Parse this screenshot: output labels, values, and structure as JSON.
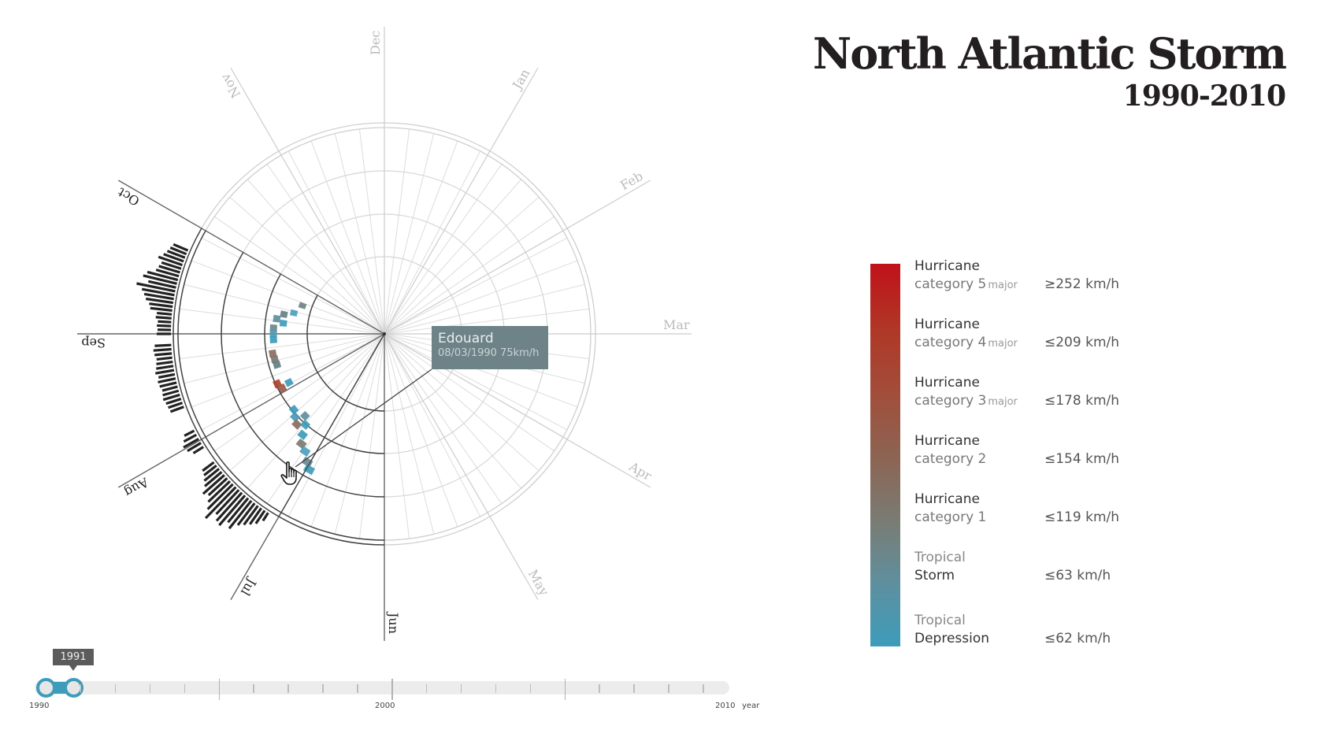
{
  "title": {
    "main": "North Atlantic Storm",
    "years": "1990-2010"
  },
  "tooltip": {
    "name": "Edouard",
    "info": "08/03/1990 75km/h",
    "background": "#6e8387"
  },
  "legend": {
    "gradient": [
      "#c0111a",
      "#b03626",
      "#a24d3a",
      "#8d6352",
      "#7a7b72",
      "#5f8f9e",
      "#3d9cbb"
    ],
    "items": [
      {
        "line1": "Hurricane",
        "line2": "category 5",
        "major": "major",
        "speed": "≥252 km/h"
      },
      {
        "line1": "Hurricane",
        "line2": "category 4",
        "major": "major",
        "speed": "≤209 km/h"
      },
      {
        "line1": "Hurricane",
        "line2": "category 3",
        "major": "major",
        "speed": "≤178 km/h"
      },
      {
        "line1": "Hurricane",
        "line2": "category 2",
        "major": "",
        "speed": "≤154 km/h"
      },
      {
        "line1": "Hurricane",
        "line2": "category 1",
        "major": "",
        "speed": "≤119 km/h"
      },
      {
        "line1": "Tropical",
        "line2": "Storm",
        "major": "",
        "speed": "≤63 km/h"
      },
      {
        "line1": "Tropical",
        "line2": "Depression",
        "major": "",
        "speed": "≤62 km/h"
      }
    ]
  },
  "slider": {
    "selected_label": "1991",
    "start_year": 1990,
    "end_year": 2010,
    "range": [
      1990,
      1991
    ],
    "labels": [
      "1990",
      "2000",
      "2010"
    ],
    "axis_title": "year",
    "accent": "#3d9cbb"
  },
  "cursor": {
    "icon": "hand-pointer-icon"
  },
  "chart_data": {
    "type": "radial-heatmap",
    "title": "North Atlantic Storm 1990-2010",
    "center": [
      488,
      424
    ],
    "months": [
      "Dec",
      "Jan",
      "Feb",
      "Mar",
      "Apr",
      "May",
      "Jun",
      "Jul",
      "Aug",
      "Sep",
      "Oct",
      "Nov"
    ],
    "month_angle_start_deg": -90,
    "month_angle_step_deg": 30,
    "axis_radius": 390,
    "ring_radii": [
      49,
      98,
      152,
      207,
      262,
      268
    ],
    "highlight_sector_deg": [
      90,
      210
    ],
    "spokes": 52,
    "selected_year_range": [
      1990,
      1991
    ],
    "cells": [
      {
        "angle": 199,
        "r": 110,
        "color": "#6e8387"
      },
      {
        "angle": 193,
        "r": 118,
        "color": "#4ba0bf"
      },
      {
        "angle": 191,
        "r": 130,
        "color": "#667f86"
      },
      {
        "angle": 188,
        "r": 138,
        "color": "#5d8f9c"
      },
      {
        "angle": 186,
        "r": 129,
        "color": "#3d9cbb"
      },
      {
        "angle": 183,
        "r": 141,
        "color": "#6a858b"
      },
      {
        "angle": 180,
        "r": 141,
        "color": "#4f9bb4"
      },
      {
        "angle": 177,
        "r": 141,
        "color": "#3d9cbb"
      },
      {
        "angle": 170,
        "r": 144,
        "color": "#8d6d62"
      },
      {
        "angle": 167,
        "r": 143,
        "color": "#7a7770"
      },
      {
        "angle": 164,
        "r": 142,
        "color": "#607f86"
      },
      {
        "angle": 155,
        "r": 150,
        "color": "#b0402b"
      },
      {
        "angle": 152,
        "r": 147,
        "color": "#9b5a48"
      },
      {
        "angle": 153,
        "r": 136,
        "color": "#3d9cbb"
      },
      {
        "angle": 140,
        "r": 150,
        "color": "#3d9cbb"
      },
      {
        "angle": 137,
        "r": 155,
        "color": "#4a9ab6"
      },
      {
        "angle": 134,
        "r": 145,
        "color": "#5f8f9e"
      },
      {
        "angle": 134,
        "r": 160,
        "color": "#8a6b60"
      },
      {
        "angle": 131,
        "r": 153,
        "color": "#3d9cbb"
      },
      {
        "angle": 129,
        "r": 165,
        "color": "#3d9cbb"
      },
      {
        "angle": 127,
        "r": 175,
        "color": "#7a7b72"
      },
      {
        "angle": 124,
        "r": 180,
        "color": "#4ba0bf"
      },
      {
        "angle": 121,
        "r": 190,
        "color": "#6a8a90"
      },
      {
        "angle": 119,
        "r": 197,
        "color": "#3d9cbb"
      }
    ],
    "histogram": {
      "base_radius": 271,
      "bar_width_deg": 1.05,
      "segments": [
        {
          "from": 123,
          "to": 143,
          "lengths": [
            12,
            20,
            25,
            30,
            35,
            45,
            40,
            50,
            48,
            42,
            55,
            45,
            38,
            32,
            36,
            28,
            24,
            20,
            18
          ]
        },
        {
          "from": 148,
          "to": 153,
          "lengths": [
            15,
            20,
            22,
            18,
            14
          ]
        },
        {
          "from": 160,
          "to": 177,
          "lengths": [
            18,
            19,
            20,
            22,
            21,
            20,
            22,
            23,
            21,
            24,
            22,
            21,
            20,
            22,
            23,
            21
          ]
        },
        {
          "from": 180,
          "to": 203,
          "lengths": [
            18,
            17,
            18,
            17,
            20,
            19,
            28,
            30,
            35,
            38,
            42,
            50,
            36,
            44,
            40,
            30,
            28,
            26,
            32,
            27,
            24,
            22,
            20
          ]
        }
      ]
    },
    "highlight_lines": [
      {
        "from": "center",
        "to_angle": 120
      },
      {
        "from": [
          548,
          469
        ],
        "to": [
          375,
          593
        ]
      }
    ]
  }
}
